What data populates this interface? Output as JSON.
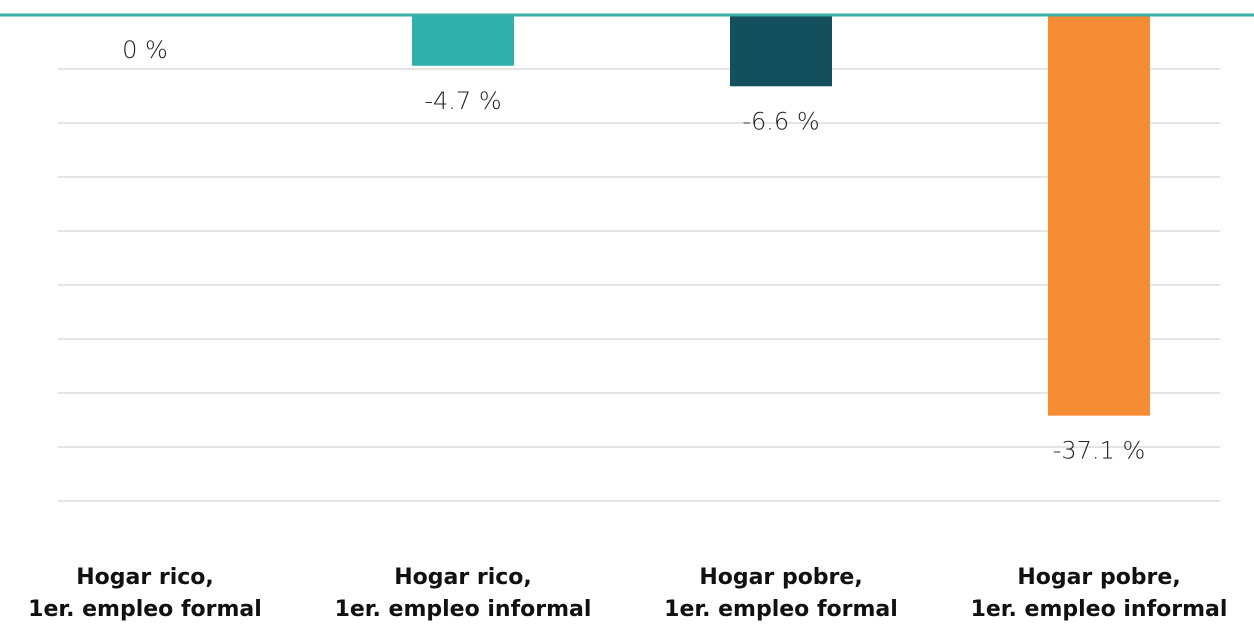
{
  "chart_data": {
    "type": "bar",
    "categories": [
      "Hogar rico,\n1er. empleo formal",
      "Hogar rico,\n1er. empleo informal",
      "Hogar pobre,\n1er. empleo formal",
      "Hogar pobre,\n1er. empleo informal"
    ],
    "values": [
      0,
      -4.7,
      -6.6,
      -37.1
    ],
    "value_labels": [
      "0 %",
      "-4.7 %",
      "-6.6 %",
      "-37.1 %"
    ],
    "colors": [
      "#2fb0ac",
      "#2fb0ac",
      "#134f5c",
      "#f58b33"
    ],
    "axis_color": "#3aaea6",
    "ylim": [
      -50,
      0
    ],
    "yticks": [
      -45,
      -40,
      -35,
      -30,
      -25,
      -20,
      -15,
      -10,
      -5
    ],
    "grid": true
  }
}
